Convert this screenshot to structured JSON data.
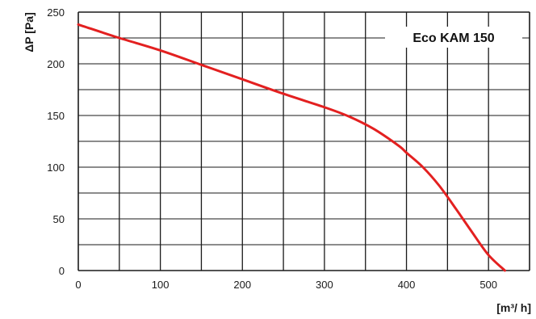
{
  "chart_data": {
    "type": "line",
    "title": "Eco KAM 150",
    "xlabel": "[m³/ h]",
    "ylabel": "ΔP [Pa]",
    "xlim": [
      0,
      550
    ],
    "ylim": [
      0,
      250
    ],
    "x_ticks": [
      0,
      100,
      200,
      300,
      400,
      500
    ],
    "y_ticks": [
      0,
      50,
      100,
      150,
      200,
      250
    ],
    "x_grid_step": 50,
    "y_grid_step": 25,
    "grid": true,
    "legend": "none",
    "series": [
      {
        "name": "",
        "color": "#e32020",
        "x": [
          0,
          50,
          100,
          150,
          200,
          250,
          300,
          330,
          360,
          390,
          400,
          420,
          440,
          460,
          480,
          500,
          520
        ],
        "y": [
          238,
          225,
          213,
          199,
          185,
          171,
          158,
          149,
          137,
          121,
          114,
          100,
          82,
          60,
          37,
          15,
          0
        ]
      }
    ]
  },
  "colors": {
    "grid": "#1a1a1a",
    "curve": "#e32020",
    "background": "#ffffff"
  }
}
